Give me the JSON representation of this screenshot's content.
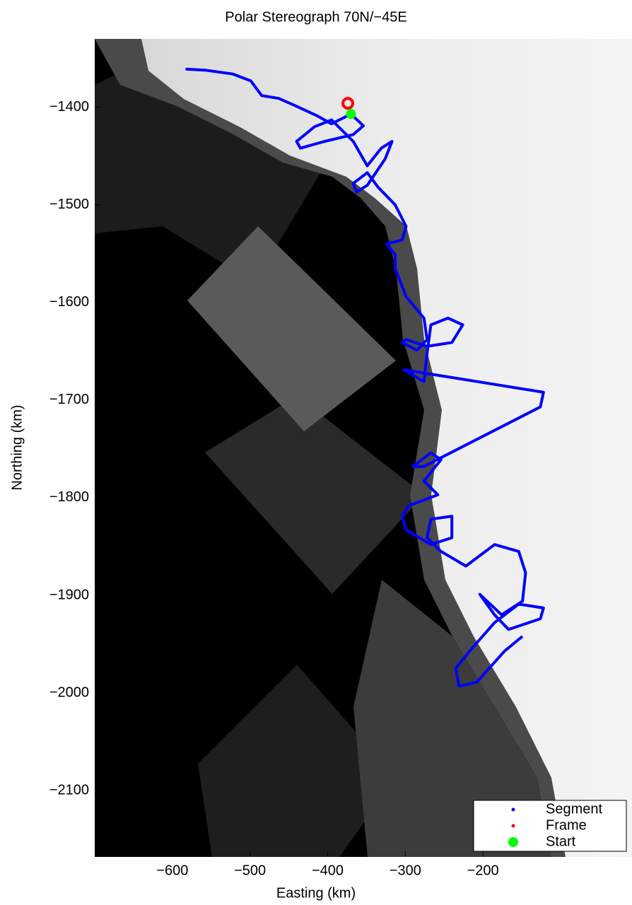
{
  "chart_data": {
    "type": "track",
    "title": "Polar Stereograph 70N/−45E",
    "x_label": "Easting (km)",
    "y_label": "Northing (km)",
    "xlim": [
      -700,
      -8
    ],
    "ylim": [
      -2168,
      -1330
    ],
    "xticks": [
      {
        "value": -600,
        "label": "−600"
      },
      {
        "value": -500,
        "label": "−500"
      },
      {
        "value": -400,
        "label": "−400"
      },
      {
        "value": -300,
        "label": "−300"
      },
      {
        "value": -200,
        "label": "−200"
      }
    ],
    "yticks": [
      {
        "value": -2100,
        "label": "−2100"
      },
      {
        "value": -2000,
        "label": "−2000"
      },
      {
        "value": -1900,
        "label": "−1900"
      },
      {
        "value": -1800,
        "label": "−1800"
      },
      {
        "value": -1700,
        "label": "−1700"
      },
      {
        "value": -1600,
        "label": "−1600"
      },
      {
        "value": -1500,
        "label": "−1500"
      },
      {
        "value": -1400,
        "label": "−1400"
      }
    ],
    "legend": "lower right",
    "series": [
      {
        "name": "Segment",
        "color": "#0000ff",
        "x": [
          -583,
          -558,
          -522,
          -499,
          -485,
          -463,
          -440,
          -413,
          -395,
          -370,
          -354,
          -367,
          -404,
          -435,
          -440,
          -417,
          -395,
          -367,
          -349,
          -331,
          -317,
          -326,
          -349,
          -363,
          -367,
          -349,
          -335,
          -313,
          -299,
          -304,
          -324,
          -313,
          -313,
          -299,
          -276,
          -272,
          -285,
          -304,
          -299,
          -272,
          -240,
          -226,
          -245,
          -267,
          -272,
          -276,
          -302,
          -122,
          -126,
          -276,
          -290,
          -267,
          -254,
          -276,
          -258,
          -295,
          -304,
          -299,
          -267,
          -240,
          -240,
          -267,
          -272,
          -254,
          -222,
          -185,
          -154,
          -145,
          -149,
          -176,
          -204,
          -185,
          -167,
          -126,
          -122,
          -154,
          -185,
          -217,
          -235,
          -231,
          -208,
          -172,
          -149
        ],
        "values": [
          -1361,
          -1362,
          -1366,
          -1373,
          -1388,
          -1391,
          -1399,
          -1409,
          -1417,
          -1407,
          -1419,
          -1428,
          -1435,
          -1442,
          -1435,
          -1420,
          -1413,
          -1435,
          -1460,
          -1442,
          -1435,
          -1453,
          -1480,
          -1487,
          -1478,
          -1467,
          -1482,
          -1500,
          -1522,
          -1536,
          -1540,
          -1551,
          -1565,
          -1594,
          -1616,
          -1638,
          -1649,
          -1641,
          -1638,
          -1645,
          -1641,
          -1623,
          -1616,
          -1623,
          -1652,
          -1681,
          -1669,
          -1692,
          -1707,
          -1768,
          -1768,
          -1754,
          -1761,
          -1783,
          -1797,
          -1808,
          -1819,
          -1833,
          -1848,
          -1841,
          -1819,
          -1822,
          -1841,
          -1855,
          -1870,
          -1848,
          -1855,
          -1877,
          -1906,
          -1920,
          -1899,
          -1920,
          -1935,
          -1924,
          -1913,
          -1909,
          -1928,
          -1957,
          -1975,
          -1993,
          -1989,
          -1957,
          -1942
        ]
      },
      {
        "name": "Frame",
        "color": "#ff0000",
        "x": [
          -374
        ],
        "values": [
          -1396
        ]
      },
      {
        "name": "Start",
        "color": "#00ff00",
        "x": [
          -370
        ],
        "values": [
          -1407
        ]
      }
    ]
  }
}
